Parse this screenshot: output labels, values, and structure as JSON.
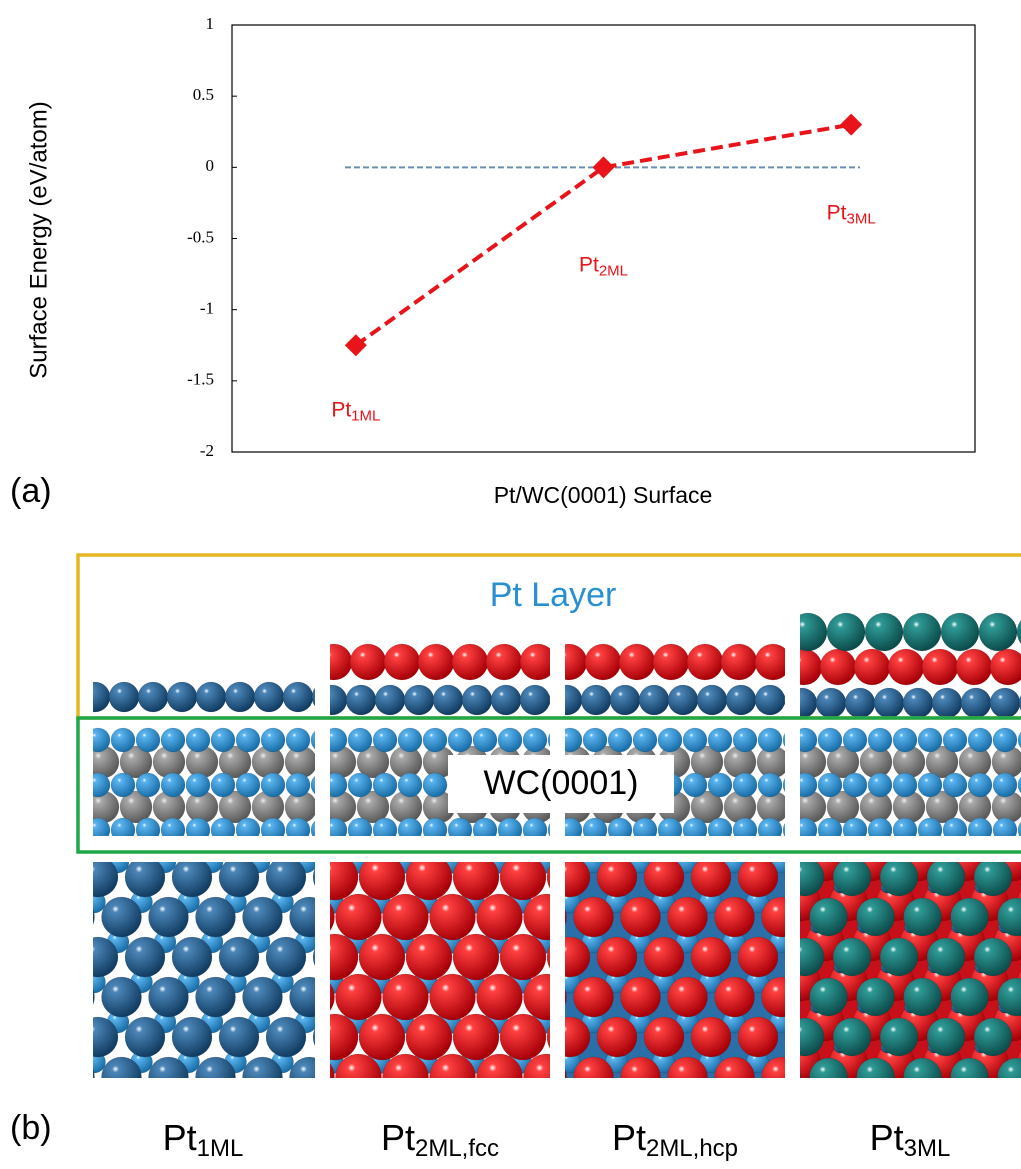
{
  "chart_data": {
    "type": "line",
    "y_label": "Surface Energy (eV/atom)",
    "x_label": "Pt/WC(0001) Surface",
    "categories": [
      null,
      null,
      null
    ],
    "series": [
      {
        "color": "#e8141a",
        "marker": "diamond",
        "dashed": true,
        "values": [
          -1.25,
          0,
          0.3
        ]
      }
    ],
    "point_labels": [
      {
        "base": "Pt",
        "subscript": "1ML"
      },
      {
        "base": "Pt",
        "subscript": "2ML"
      },
      {
        "base": "Pt",
        "subscript": "3ML"
      }
    ],
    "reference_line": {
      "value": 0,
      "color": "#6a8fb0"
    },
    "ylim": [
      -2,
      1
    ],
    "yticks": [
      -2,
      -1.5,
      -1,
      -0.5,
      0,
      0.5,
      1
    ]
  },
  "panel_a": {
    "label": "(a)"
  },
  "panel_b": {
    "label": "(b)",
    "layer_label": "Pt Layer",
    "substrate_label": "WC(0001)",
    "structures": [
      {
        "base": "Pt",
        "subscript": "1ML"
      },
      {
        "base": "Pt",
        "subscript": "2ML,fcc"
      },
      {
        "base": "Pt",
        "subscript": "2ML,hcp"
      },
      {
        "base": "Pt",
        "subscript": "3ML"
      }
    ]
  }
}
